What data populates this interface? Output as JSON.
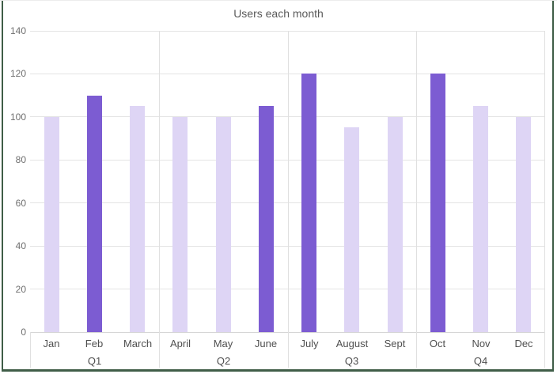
{
  "chart_data": {
    "type": "bar",
    "title": "Users each month",
    "categories": [
      "Jan",
      "Feb",
      "March",
      "April",
      "May",
      "June",
      "July",
      "August",
      "Sept",
      "Oct",
      "Nov",
      "Dec"
    ],
    "values": [
      100,
      110,
      105,
      100,
      100,
      105,
      120,
      95,
      100,
      120,
      105,
      100
    ],
    "highlighted_categories": [
      "Feb",
      "June",
      "July",
      "Oct"
    ],
    "group_labels": [
      "Q1",
      "Q2",
      "Q3",
      "Q4"
    ],
    "categories_per_group": 3,
    "yticks": [
      0,
      20,
      40,
      60,
      80,
      100,
      120,
      140
    ],
    "ylim": [
      0,
      140
    ],
    "xlabel": "",
    "ylabel": "",
    "legend": "none",
    "grid": "horizontal-gridlines-and-quarter-separators",
    "colors": {
      "bar_default": "#ded5f5",
      "bar_highlight": "#7c5cd2",
      "gridline": "#e4e4e4",
      "separator": "#e0e0e0",
      "axis_line": "#d6d6d6",
      "frame_border": "#3f5d47",
      "title_text": "#5a5a5a",
      "tick_text": "#6f6f6f",
      "category_text": "#4f4f4f"
    }
  }
}
